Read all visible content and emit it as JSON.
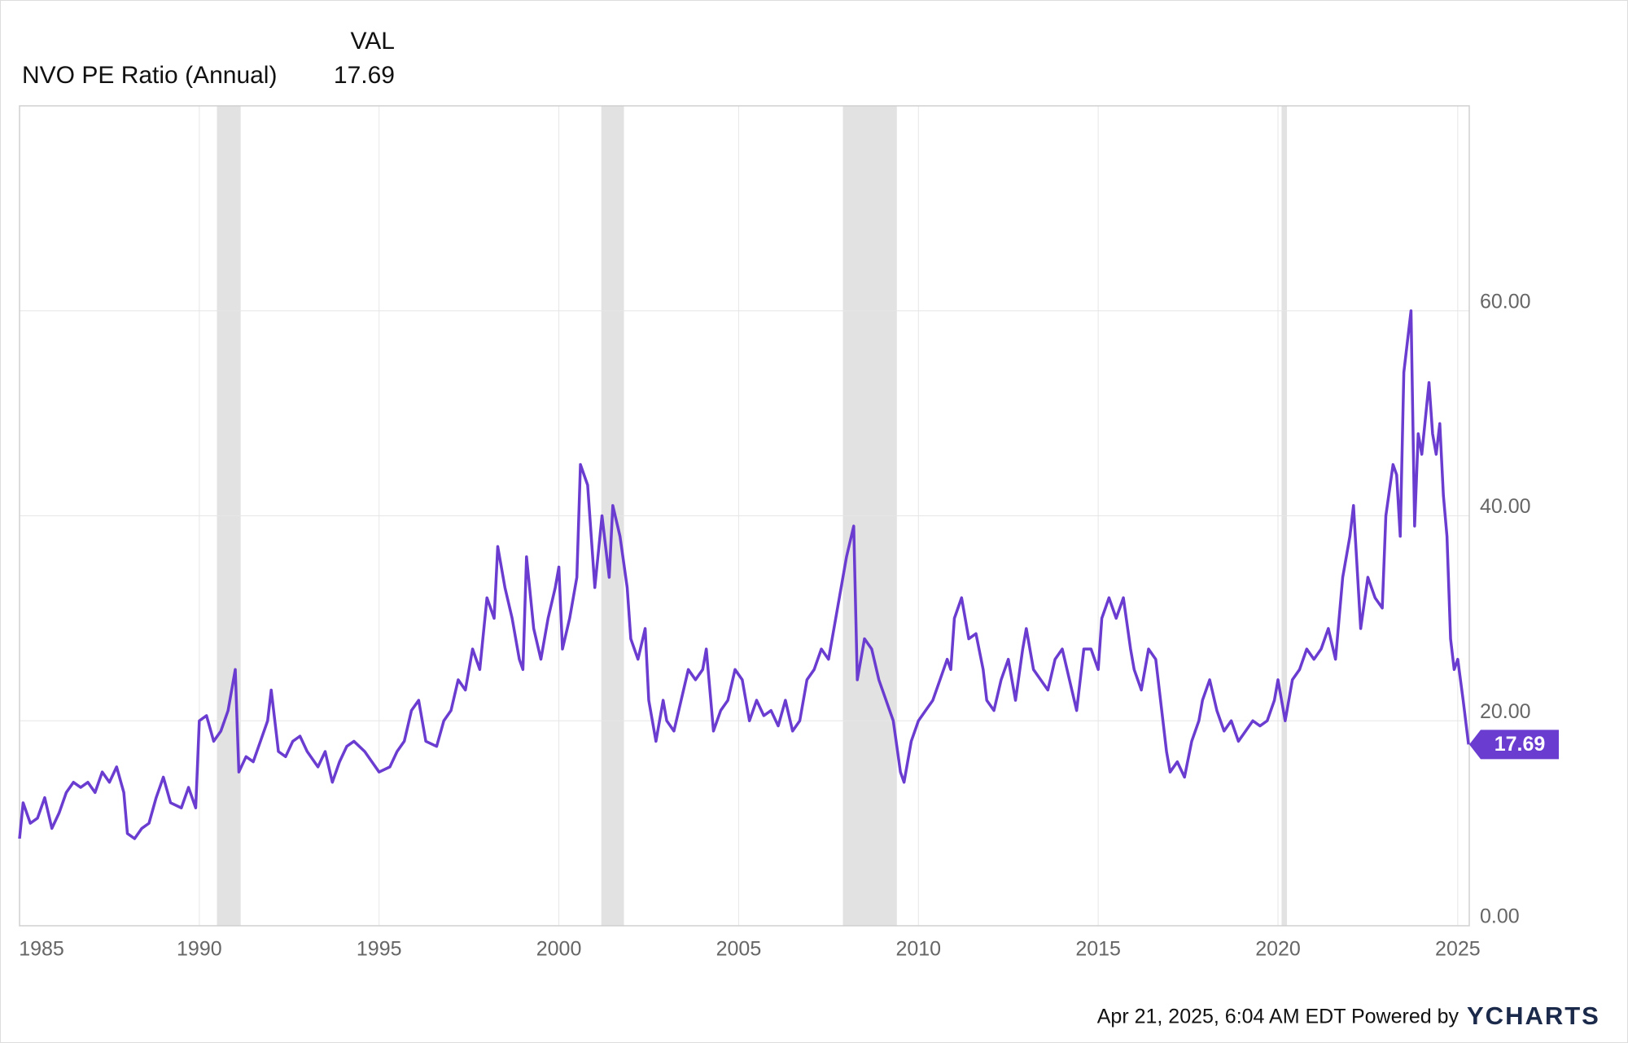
{
  "chart_data": {
    "type": "line",
    "value_header": "VAL",
    "footer": "Apr 21, 2025, 6:04 AM EDT Powered by",
    "brand": "YCHARTS",
    "x": [
      1985.0,
      1985.1,
      1985.3,
      1985.5,
      1985.7,
      1985.9,
      1986.1,
      1986.3,
      1986.5,
      1986.7,
      1986.9,
      1987.1,
      1987.3,
      1987.5,
      1987.7,
      1987.9,
      1988.0,
      1988.2,
      1988.4,
      1988.6,
      1988.8,
      1989.0,
      1989.2,
      1989.5,
      1989.7,
      1989.9,
      1990.0,
      1990.2,
      1990.4,
      1990.6,
      1990.8,
      1991.0,
      1991.1,
      1991.3,
      1991.5,
      1991.7,
      1991.9,
      1992.0,
      1992.2,
      1992.4,
      1992.6,
      1992.8,
      1993.0,
      1993.3,
      1993.5,
      1993.7,
      1993.9,
      1994.1,
      1994.3,
      1994.6,
      1994.8,
      1995.0,
      1995.3,
      1995.5,
      1995.7,
      1995.9,
      1996.1,
      1996.3,
      1996.6,
      1996.8,
      1997.0,
      1997.2,
      1997.4,
      1997.6,
      1997.8,
      1998.0,
      1998.2,
      1998.3,
      1998.5,
      1998.7,
      1998.9,
      1999.0,
      1999.1,
      1999.3,
      1999.5,
      1999.7,
      1999.9,
      2000.0,
      2000.1,
      2000.3,
      2000.5,
      2000.6,
      2000.8,
      2000.9,
      2001.0,
      2001.2,
      2001.4,
      2001.5,
      2001.7,
      2001.9,
      2002.0,
      2002.2,
      2002.4,
      2002.5,
      2002.7,
      2002.9,
      2003.0,
      2003.2,
      2003.4,
      2003.6,
      2003.8,
      2004.0,
      2004.1,
      2004.3,
      2004.5,
      2004.7,
      2004.9,
      2005.1,
      2005.3,
      2005.5,
      2005.7,
      2005.9,
      2006.1,
      2006.3,
      2006.5,
      2006.7,
      2006.9,
      2007.1,
      2007.3,
      2007.5,
      2007.7,
      2007.9,
      2008.0,
      2008.2,
      2008.3,
      2008.5,
      2008.7,
      2008.9,
      2009.1,
      2009.3,
      2009.5,
      2009.6,
      2009.8,
      2010.0,
      2010.2,
      2010.4,
      2010.6,
      2010.8,
      2010.9,
      2011.0,
      2011.2,
      2011.4,
      2011.6,
      2011.8,
      2011.9,
      2012.1,
      2012.3,
      2012.5,
      2012.7,
      2012.9,
      2013.0,
      2013.2,
      2013.4,
      2013.6,
      2013.8,
      2014.0,
      2014.2,
      2014.4,
      2014.6,
      2014.8,
      2015.0,
      2015.1,
      2015.3,
      2015.5,
      2015.7,
      2015.9,
      2016.0,
      2016.2,
      2016.4,
      2016.6,
      2016.8,
      2016.9,
      2017.0,
      2017.2,
      2017.4,
      2017.6,
      2017.8,
      2017.9,
      2018.1,
      2018.3,
      2018.5,
      2018.7,
      2018.9,
      2019.1,
      2019.3,
      2019.5,
      2019.7,
      2019.9,
      2020.0,
      2020.2,
      2020.4,
      2020.6,
      2020.8,
      2021.0,
      2021.2,
      2021.4,
      2021.6,
      2021.8,
      2022.0,
      2022.1,
      2022.3,
      2022.5,
      2022.7,
      2022.9,
      2023.0,
      2023.2,
      2023.3,
      2023.4,
      2023.5,
      2023.6,
      2023.7,
      2023.8,
      2023.9,
      2024.0,
      2024.2,
      2024.3,
      2024.4,
      2024.5,
      2024.6,
      2024.7,
      2024.8,
      2024.9,
      2025.0,
      2025.15,
      2025.3
    ],
    "series": [
      {
        "name": "NVO PE Ratio (Annual)",
        "color": "#6a3cd0",
        "values": [
          8.5,
          12,
          10,
          10.5,
          12.5,
          9.5,
          11,
          13,
          14,
          13.5,
          14,
          13,
          15,
          14,
          15.5,
          13,
          9,
          8.5,
          9.5,
          10,
          12.5,
          14.5,
          12,
          11.5,
          13.5,
          11.5,
          20,
          20.5,
          18,
          19,
          21,
          25,
          15,
          16.5,
          16,
          18,
          20,
          23,
          17,
          16.5,
          18,
          18.5,
          17,
          15.5,
          17,
          14,
          16,
          17.5,
          18,
          17,
          16,
          15,
          15.5,
          17,
          18,
          21,
          22,
          18,
          17.5,
          20,
          21,
          24,
          23,
          27,
          25,
          32,
          30,
          37,
          33,
          30,
          26,
          25,
          36,
          29,
          26,
          30,
          33,
          35,
          27,
          30,
          34,
          45,
          43,
          38,
          33,
          40,
          34,
          41,
          38,
          33,
          28,
          26,
          29,
          22,
          18,
          22,
          20,
          19,
          22,
          25,
          24,
          25,
          27,
          19,
          21,
          22,
          25,
          24,
          20,
          22,
          20.5,
          21,
          19.5,
          22,
          19,
          20,
          24,
          25,
          27,
          26,
          30,
          34,
          36,
          39,
          24,
          28,
          27,
          24,
          22,
          20,
          15,
          14,
          18,
          20,
          21,
          22,
          24,
          26,
          25,
          30,
          32,
          28,
          28.5,
          25,
          22,
          21,
          24,
          26,
          22,
          27,
          29,
          25,
          24,
          23,
          26,
          27,
          24,
          21,
          27,
          27,
          25,
          30,
          32,
          30,
          32,
          27,
          25,
          23,
          27,
          26,
          20,
          17,
          15,
          16,
          14.5,
          18,
          20,
          22,
          24,
          21,
          19,
          20,
          18,
          19,
          20,
          19.5,
          20,
          22,
          24,
          20,
          24,
          25,
          27,
          26,
          27,
          29,
          26,
          34,
          38,
          41,
          29,
          34,
          32,
          31,
          40,
          45,
          44,
          38,
          54,
          57,
          60,
          39,
          48,
          46,
          53,
          48,
          46,
          49,
          42,
          38,
          28,
          25,
          26,
          22,
          17.69
        ]
      }
    ],
    "recessions": [
      [
        1990.49,
        1991.15
      ],
      [
        2001.18,
        2001.81
      ],
      [
        2007.9,
        2009.4
      ],
      [
        2020.1,
        2020.25
      ]
    ],
    "xlim": [
      1985,
      2025.32
    ],
    "xticks": [
      1985,
      1990,
      1995,
      2000,
      2005,
      2010,
      2015,
      2020,
      2025
    ],
    "ylim": [
      0,
      80
    ],
    "yticks": [
      {
        "value": 0,
        "label": "0.00"
      },
      {
        "value": 20,
        "label": "20.00"
      },
      {
        "value": 40,
        "label": "40.00"
      },
      {
        "value": 60,
        "label": "60.00"
      }
    ],
    "grid": true
  }
}
